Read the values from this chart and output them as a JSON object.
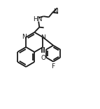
{
  "line_color": "#1a1a1a",
  "line_width": 1.3,
  "font_size": 6.5,
  "fig_width": 1.43,
  "fig_height": 1.55,
  "xlim": [
    0,
    10
  ],
  "ylim": [
    0,
    10
  ]
}
